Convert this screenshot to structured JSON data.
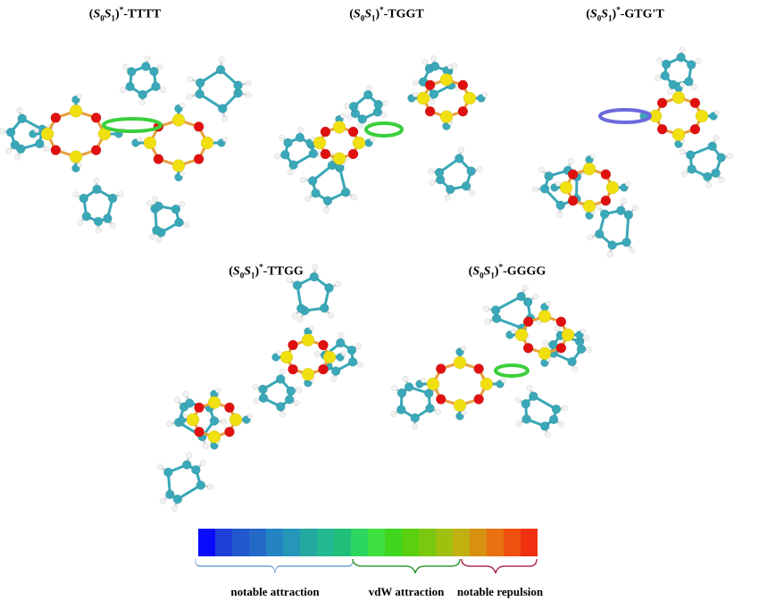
{
  "panels": [
    {
      "title_pre": "(",
      "S0": "S",
      "sub0": "0",
      "S1": "S",
      "sub1": "1",
      "close": ")",
      "star": "*",
      "suffix": "-TTTT"
    },
    {
      "title_pre": "(",
      "S0": "S",
      "sub0": "0",
      "S1": "S",
      "sub1": "1",
      "close": ")",
      "star": "*",
      "suffix": "-TGGT"
    },
    {
      "title_pre": "(",
      "S0": "S",
      "sub0": "0",
      "S1": "S",
      "sub1": "1",
      "close": ")",
      "star": "*",
      "suffix": "-GTG'T"
    },
    {
      "title_pre": "(",
      "S0": "S",
      "sub0": "0",
      "S1": "S",
      "sub1": "1",
      "close": ")",
      "star": "*",
      "suffix": "-TTGG"
    },
    {
      "title_pre": "(",
      "S0": "S",
      "sub0": "0",
      "S1": "S",
      "sub1": "1",
      "close": ")",
      "star": "*",
      "suffix": "-GGGG"
    }
  ],
  "scale": {
    "colors": [
      "#0a0aff",
      "#1f3fd8",
      "#2357d0",
      "#2468c8",
      "#2483c2",
      "#2596b8",
      "#24a8a0",
      "#22b890",
      "#20c07a",
      "#2cd660",
      "#3ee040",
      "#40d620",
      "#5ad010",
      "#7ac810",
      "#a0c010",
      "#c0b010",
      "#d89010",
      "#e87010",
      "#f05010",
      "#f03010"
    ],
    "ranges": [
      {
        "label": "notable attraction",
        "color": "#6f9fd0"
      },
      {
        "label": "vdW attraction",
        "color": "#3a9a3a"
      },
      {
        "label": "notable repulsion",
        "color": "#b03050"
      }
    ]
  },
  "colors": {
    "carbon": "#3aa8b8",
    "oxygen": "#e01010",
    "silicon": "#f0e010",
    "hydrogen": "#f2f2f2",
    "isosurface": "#3ccf3c"
  }
}
